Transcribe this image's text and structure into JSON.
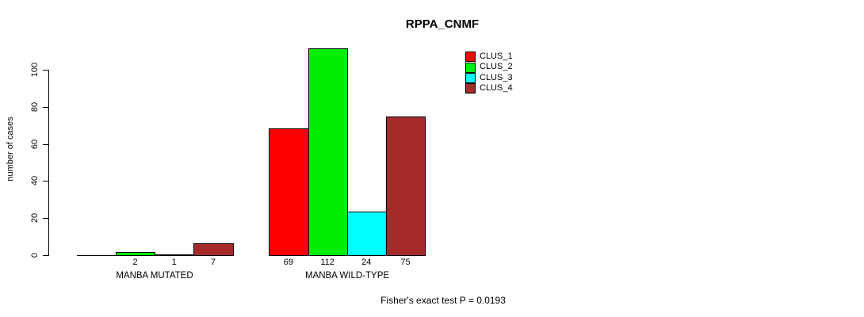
{
  "chart_data": {
    "type": "bar",
    "title": "RPPA_CNMF",
    "ylabel": "number of cases",
    "xlabel": "",
    "ylim": [
      0,
      117
    ],
    "yticks": [
      0,
      20,
      40,
      60,
      80,
      100
    ],
    "grid": false,
    "legend_position": "top-right",
    "series": [
      {
        "name": "CLUS_1",
        "color": "#FF0000"
      },
      {
        "name": "CLUS_2",
        "color": "#00EE00"
      },
      {
        "name": "CLUS_3",
        "color": "#00FFFF"
      },
      {
        "name": "CLUS_4",
        "color": "#A52A2A"
      }
    ],
    "categories": [
      "MANBA MUTATED",
      "MANBA WILD-TYPE"
    ],
    "groups": [
      {
        "label": "MANBA MUTATED",
        "values": [
          0,
          2,
          1,
          7
        ],
        "bar_labels": [
          "",
          "2",
          "1",
          "7"
        ]
      },
      {
        "label": "MANBA WILD-TYPE",
        "values": [
          69,
          112,
          24,
          75
        ],
        "bar_labels": [
          "69",
          "112",
          "24",
          "75"
        ]
      }
    ],
    "annotation": "Fisher's exact test P = 0.0193"
  }
}
